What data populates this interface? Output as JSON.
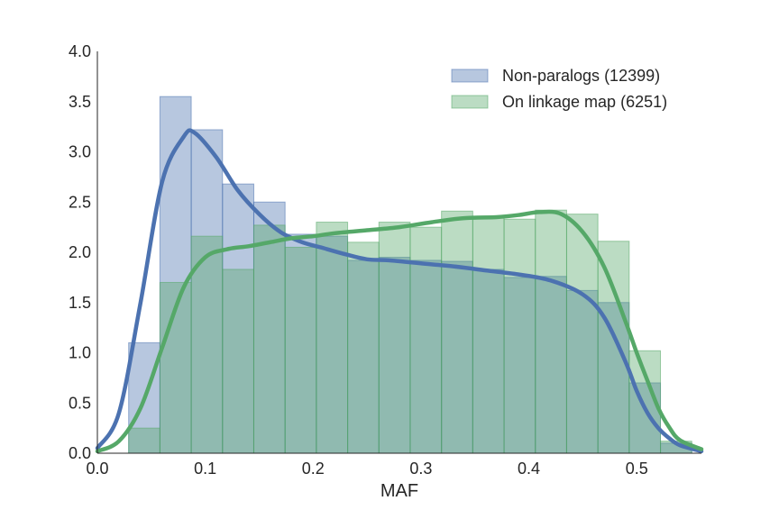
{
  "chart_data": {
    "type": "histogram-kde",
    "xlabel": "MAF",
    "ylabel": "",
    "xlim": [
      0.0,
      0.56
    ],
    "ylim": [
      0.0,
      4.0
    ],
    "xticks": [
      "0.0",
      "0.1",
      "0.2",
      "0.3",
      "0.4",
      "0.5"
    ],
    "yticks": [
      "0.0",
      "0.5",
      "1.0",
      "1.5",
      "2.0",
      "2.5",
      "3.0",
      "3.5",
      "4.0"
    ],
    "grid": false,
    "legend_position": "top-right",
    "bin_edges": [
      0.029,
      0.058,
      0.087,
      0.116,
      0.145,
      0.174,
      0.203,
      0.232,
      0.261,
      0.29,
      0.319,
      0.348,
      0.377,
      0.406,
      0.435,
      0.464,
      0.493,
      0.522,
      0.551
    ],
    "series": [
      {
        "name": "Non-paralogs (12399)",
        "color": "#4c72b0",
        "hist": [
          1.1,
          3.55,
          3.22,
          2.68,
          2.5,
          2.18,
          2.16,
          1.92,
          1.95,
          1.92,
          1.91,
          1.83,
          1.75,
          1.76,
          1.62,
          1.5,
          0.7,
          0.1
        ],
        "kde_x": [
          0.0,
          0.02,
          0.04,
          0.06,
          0.08,
          0.09,
          0.11,
          0.13,
          0.15,
          0.17,
          0.19,
          0.21,
          0.23,
          0.25,
          0.27,
          0.3,
          0.33,
          0.36,
          0.39,
          0.42,
          0.45,
          0.47,
          0.49,
          0.5,
          0.51,
          0.52,
          0.53,
          0.54,
          0.56
        ],
        "kde_y": [
          0.05,
          0.4,
          1.5,
          2.7,
          3.15,
          3.19,
          2.95,
          2.62,
          2.38,
          2.2,
          2.1,
          2.04,
          1.98,
          1.93,
          1.92,
          1.89,
          1.86,
          1.82,
          1.78,
          1.72,
          1.58,
          1.35,
          0.9,
          0.62,
          0.4,
          0.25,
          0.15,
          0.08,
          0.02
        ]
      },
      {
        "name": "On linkage map (6251)",
        "color": "#55a868",
        "hist": [
          0.25,
          1.7,
          2.16,
          1.83,
          2.27,
          2.05,
          2.3,
          2.1,
          2.3,
          2.25,
          2.41,
          2.36,
          2.33,
          2.42,
          2.38,
          2.11,
          1.02,
          0.12
        ],
        "kde_x": [
          0.0,
          0.02,
          0.04,
          0.06,
          0.08,
          0.1,
          0.12,
          0.14,
          0.16,
          0.18,
          0.2,
          0.22,
          0.25,
          0.28,
          0.31,
          0.34,
          0.37,
          0.39,
          0.41,
          0.43,
          0.45,
          0.47,
          0.49,
          0.5,
          0.51,
          0.52,
          0.53,
          0.54,
          0.56
        ],
        "kde_y": [
          0.02,
          0.12,
          0.45,
          1.05,
          1.65,
          1.95,
          2.03,
          2.06,
          2.1,
          2.14,
          2.16,
          2.19,
          2.22,
          2.25,
          2.3,
          2.34,
          2.35,
          2.37,
          2.4,
          2.38,
          2.2,
          1.85,
          1.3,
          1.0,
          0.72,
          0.45,
          0.26,
          0.13,
          0.04
        ]
      }
    ]
  }
}
